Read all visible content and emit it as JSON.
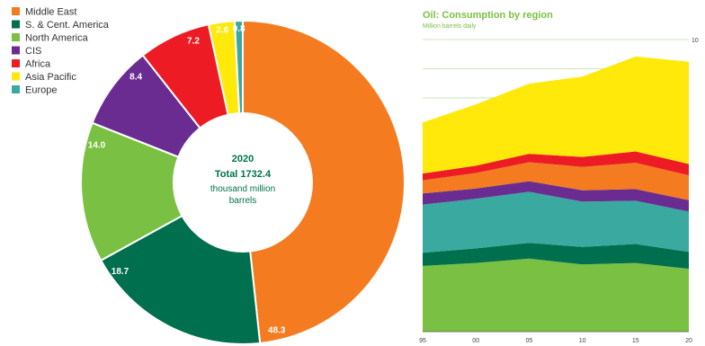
{
  "colors": {
    "middle_east": "#F47B20",
    "s_cent_america": "#006F4E",
    "north_america": "#7AC143",
    "cis": "#6A2C91",
    "africa": "#ED1C24",
    "asia_pacific": "#FFE90A",
    "europe": "#3AA99F",
    "center_label": "#00734A",
    "area_title": "#7AC143"
  },
  "chart_data": [
    {
      "type": "pie",
      "variant": "donut",
      "title": "",
      "center": {
        "year": "2020",
        "total": "Total 1732.4",
        "unit_line1": "thousand million",
        "unit_line2": "barrels"
      },
      "legend": [
        "Middle East",
        "S. & Cent. America",
        "North America",
        "CIS",
        "Africa",
        "Asia Pacific",
        "Europe"
      ],
      "legend_placement": "top-left",
      "slices": [
        {
          "name": "Middle East",
          "value": 48.3,
          "label": "48.3",
          "color_key": "middle_east"
        },
        {
          "name": "S. & Cent. America",
          "value": 18.7,
          "label": "18.7",
          "color_key": "s_cent_america"
        },
        {
          "name": "North America",
          "value": 14.0,
          "label": "14.0",
          "color_key": "north_america"
        },
        {
          "name": "CIS",
          "value": 8.4,
          "label": "8.4",
          "color_key": "cis"
        },
        {
          "name": "Africa",
          "value": 7.2,
          "label": "7.2",
          "color_key": "africa"
        },
        {
          "name": "Asia Pacific",
          "value": 2.6,
          "label": "2.6",
          "color_key": "asia_pacific"
        },
        {
          "name": "Europe",
          "value": 0.8,
          "label": "0.8",
          "color_key": "europe"
        }
      ]
    },
    {
      "type": "area",
      "stacked": true,
      "title": "Oil: Consumption by region",
      "subtitle": "Million barrels daily",
      "x": [
        1995,
        2000,
        2005,
        2010,
        2015,
        2020
      ],
      "x_tick_labels": [
        "95",
        "00",
        "05",
        "10",
        "15",
        "20"
      ],
      "ylim": [
        0,
        100
      ],
      "y_tick_labels": [
        "10"
      ],
      "grid": true,
      "series": [
        {
          "name": "North America",
          "color_key": "north_america",
          "values": [
            22.5,
            23.5,
            25.0,
            23.0,
            23.5,
            21.5
          ]
        },
        {
          "name": "S. & Cent. America",
          "color_key": "s_cent_america",
          "values": [
            4.5,
            5.0,
            5.4,
            6.0,
            6.5,
            5.8
          ]
        },
        {
          "name": "Europe",
          "color_key": "europe",
          "values": [
            16.5,
            17.0,
            17.5,
            15.5,
            14.8,
            13.8
          ]
        },
        {
          "name": "CIS",
          "color_key": "cis",
          "values": [
            3.8,
            3.5,
            3.6,
            3.9,
            4.0,
            3.9
          ]
        },
        {
          "name": "Middle East",
          "color_key": "middle_east",
          "values": [
            4.5,
            5.3,
            6.5,
            8.0,
            9.0,
            8.5
          ]
        },
        {
          "name": "Africa",
          "color_key": "africa",
          "values": [
            2.3,
            2.5,
            2.9,
            3.4,
            3.9,
            3.9
          ]
        },
        {
          "name": "Asia Pacific",
          "color_key": "asia_pacific",
          "values": [
            17.5,
            21.0,
            24.0,
            27.5,
            32.5,
            35.0
          ]
        }
      ]
    }
  ]
}
